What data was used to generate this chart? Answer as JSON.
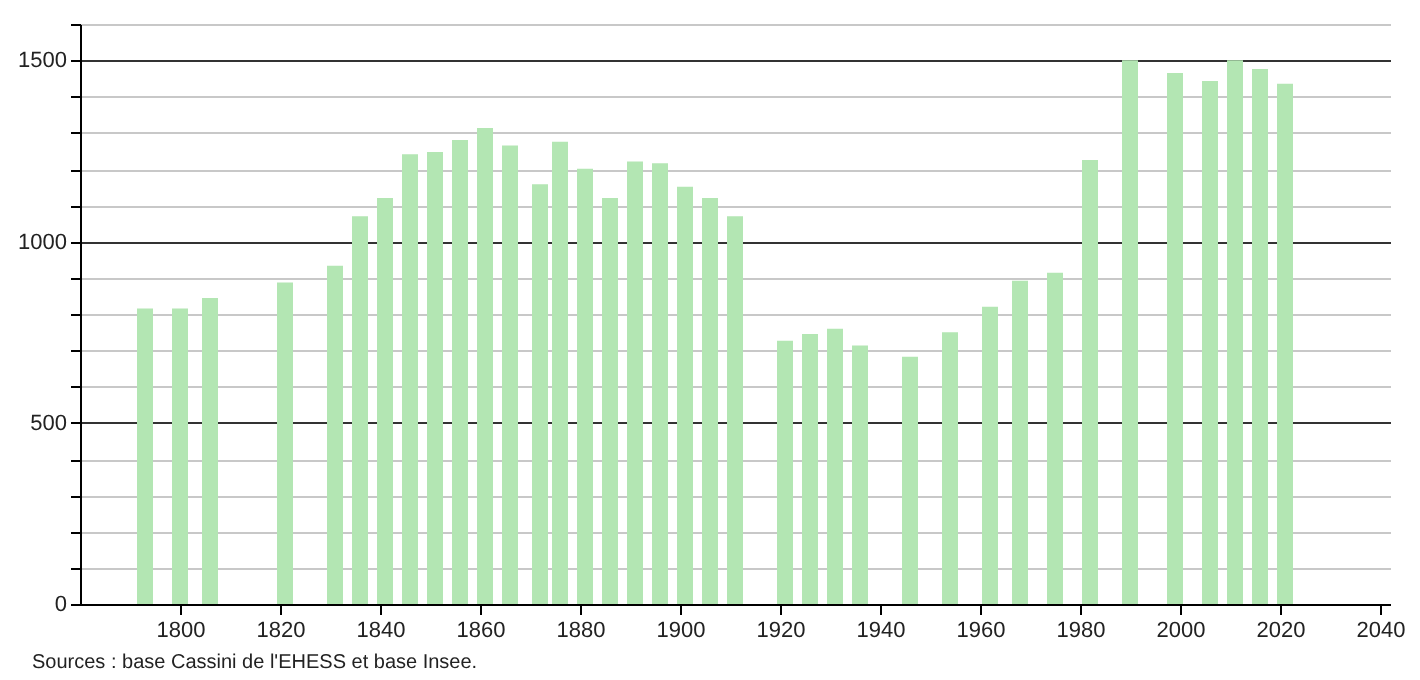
{
  "chart_data": {
    "type": "bar",
    "x": [
      1793,
      1800,
      1806,
      1821,
      1831,
      1836,
      1841,
      1846,
      1851,
      1856,
      1861,
      1866,
      1872,
      1876,
      1881,
      1886,
      1891,
      1896,
      1901,
      1906,
      1911,
      1921,
      1926,
      1931,
      1936,
      1946,
      1954,
      1962,
      1968,
      1975,
      1982,
      1990,
      1999,
      2006,
      2011,
      2016,
      2021
    ],
    "values": [
      815,
      815,
      844,
      887,
      933,
      1070,
      1120,
      1241,
      1247,
      1280,
      1313,
      1265,
      1158,
      1275,
      1201,
      1120,
      1221,
      1216,
      1151,
      1120,
      1070,
      726,
      745,
      759,
      713,
      682,
      750,
      820,
      892,
      914,
      1225,
      1500,
      1465,
      1443,
      1500,
      1476,
      1435
    ],
    "color": "#b3e6b3",
    "xlim": [
      1780,
      2042
    ],
    "xticks": [
      1800,
      1820,
      1840,
      1860,
      1880,
      1900,
      1920,
      1940,
      1960,
      1980,
      2000,
      2020,
      2040
    ],
    "ylim": [
      0,
      1600
    ],
    "yticks": [
      0,
      {
        "value": 100,
        "label": null
      },
      {
        "value": 200,
        "label": null
      },
      {
        "value": 300,
        "label": null
      },
      {
        "value": 400,
        "label": null
      },
      500,
      {
        "value": 600,
        "label": null
      },
      {
        "value": 700,
        "label": null
      },
      {
        "value": 800,
        "label": null
      },
      {
        "value": 900,
        "label": null
      },
      1000,
      {
        "value": 1100,
        "label": null
      },
      {
        "value": 1200,
        "label": null
      },
      {
        "value": 1300,
        "label": null
      },
      {
        "value": 1400,
        "label": null
      },
      1500,
      {
        "value": 1600,
        "label": null
      }
    ],
    "grid": "y",
    "annotations": [
      "Sources : base Cassini de l'EHESS et base Insee."
    ]
  }
}
